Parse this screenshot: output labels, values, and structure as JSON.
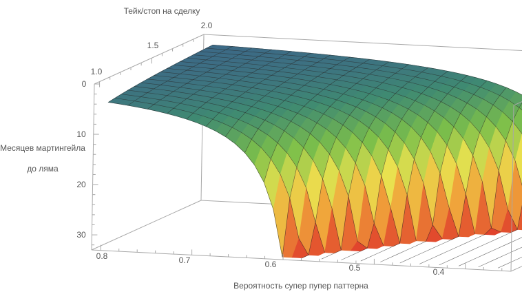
{
  "chart_data": {
    "type": "surface",
    "title": "",
    "xlabel": "Вероятность супер пупер паттерна",
    "ylabel": "Тейк/стоп на сделку",
    "zlabel_lines": [
      "Месяцев мартингейла",
      "до ляма"
    ],
    "x_ticks": [
      "0.8",
      "0.7",
      "0.6",
      "0.5",
      "0.4"
    ],
    "y_ticks": [
      "1.0",
      "1.5",
      "2.0"
    ],
    "z_ticks": [
      "0",
      "10",
      "20",
      "30"
    ],
    "xlim": [
      0.81,
      0.35
    ],
    "ylim": [
      0.95,
      2.0
    ],
    "zlim": [
      0,
      33
    ],
    "z_axis_reversed": true,
    "surface_model": {
      "form": "z = k / (p - p0(t)), clipped at zmax",
      "k": 0.88,
      "p0_at_t1": 0.58,
      "p0_at_t2": 0.36,
      "zmax": 33
    },
    "colormap": [
      "#3b5b8f",
      "#3f8a72",
      "#7cbf4a",
      "#e9e24f",
      "#f0a23a",
      "#e0402c"
    ]
  }
}
